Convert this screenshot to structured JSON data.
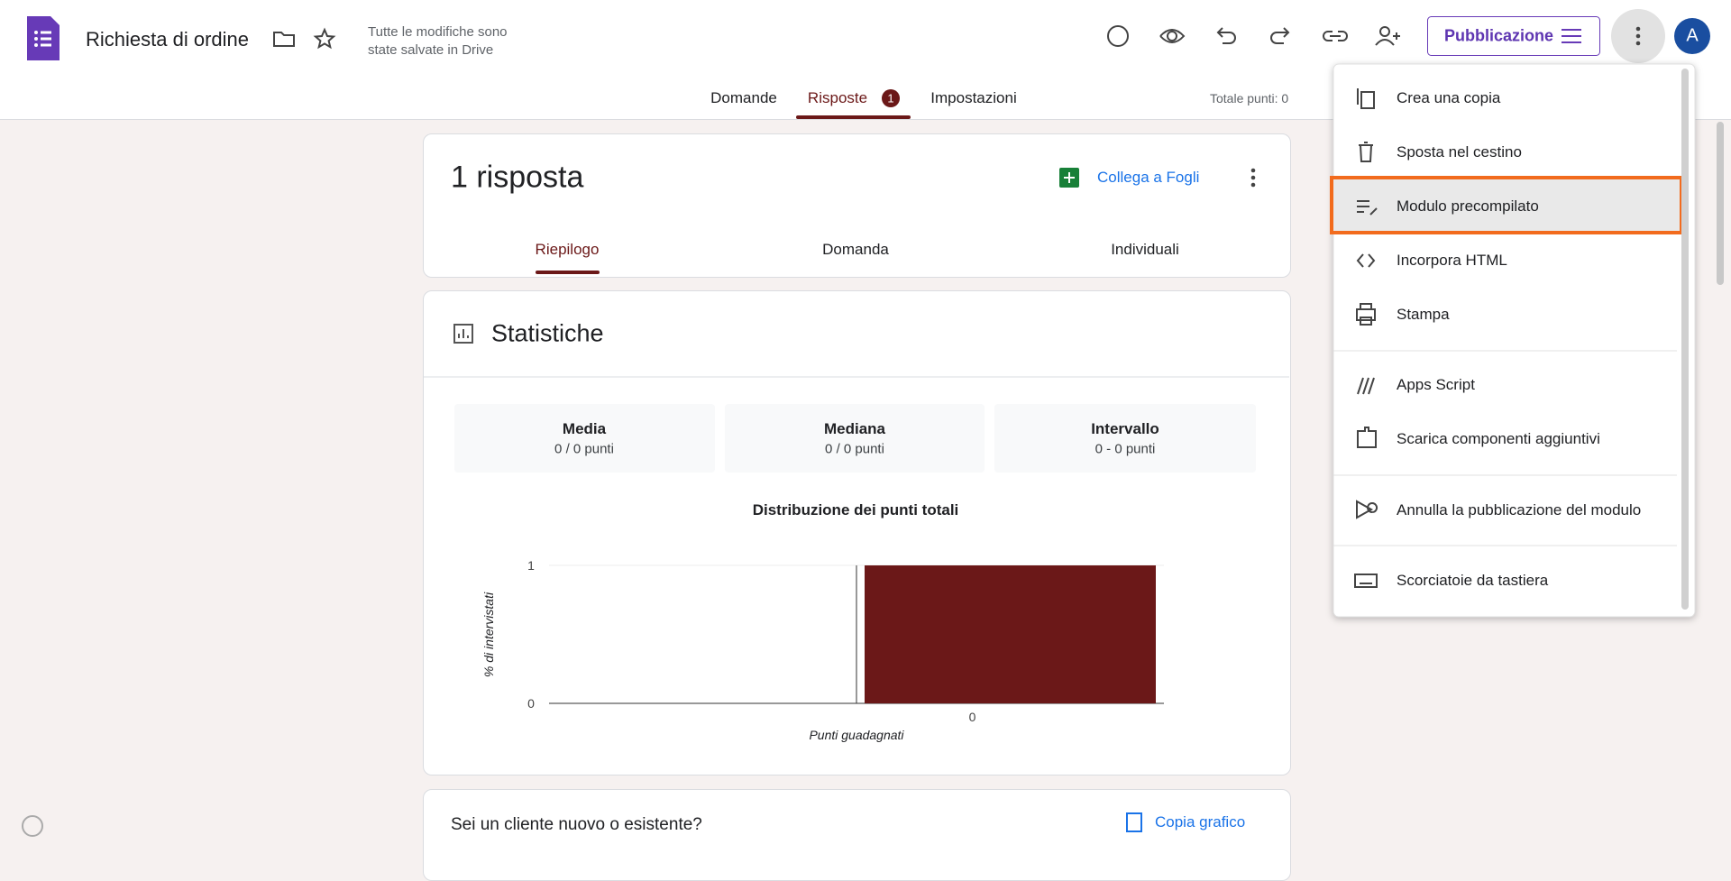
{
  "header": {
    "title": "Richiesta di ordine",
    "save_status_line1": "Tutte le modifiche sono",
    "save_status_line2": "state salvate in Drive",
    "publish_button": "Pubblicazione",
    "avatar": "A"
  },
  "tabs": {
    "items": [
      "Domande",
      "Risposte",
      "Impostazioni"
    ],
    "badge": "1",
    "total_points": "Totale punti: 0"
  },
  "summary": {
    "title": "1 risposta",
    "link_sheets": "Collega a Fogli",
    "subtabs": [
      "Riepilogo",
      "Domanda",
      "Individuali"
    ]
  },
  "stats": {
    "title": "Statistiche",
    "boxes": [
      {
        "label": "Media",
        "value": "0 / 0 punti"
      },
      {
        "label": "Mediana",
        "value": "0 / 0 punti"
      },
      {
        "label": "Intervallo",
        "value": "0 - 0 punti"
      }
    ]
  },
  "chart": {
    "type": "bar",
    "title": "Distribuzione dei punti totali",
    "x_label": "Punti guadagnati",
    "y_label": "% di intervistati",
    "categories": [
      "0"
    ],
    "values": [
      1
    ],
    "ylim": [
      0,
      1
    ],
    "yticks": [
      0,
      1
    ],
    "color": "#6b1818"
  },
  "question": {
    "title": "Sei un cliente nuovo o esistente?",
    "copy_chart": "Copia grafico"
  },
  "menu": {
    "items": [
      "Crea una copia",
      "Sposta nel cestino",
      "Modulo precompilato",
      "Incorpora HTML",
      "Stampa",
      "Apps Script",
      "Scarica componenti aggiuntivi",
      "Annulla la pubblicazione del modulo",
      "Scorciatoie da tastiera"
    ]
  }
}
